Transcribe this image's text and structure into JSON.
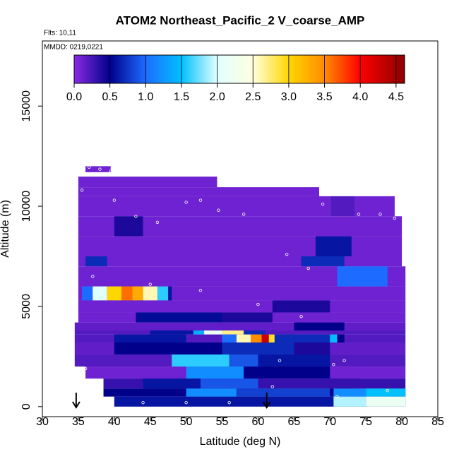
{
  "chart_data": {
    "type": "heatmap",
    "title": "ATOM2 Northeast_Pacific_2 V_coarse_AMP",
    "subtitle": "Flts: 10,11",
    "annotation": "MMDD: 0219,0221",
    "x_label": "Latitude (deg N)",
    "y_label": "Altitude (m)",
    "xlim": [
      30,
      85
    ],
    "ylim": [
      -500,
      18250
    ],
    "xticks": [
      30,
      35,
      40,
      45,
      50,
      55,
      60,
      65,
      70,
      75,
      80,
      85
    ],
    "yticks": [
      0,
      5000,
      10000,
      15000
    ],
    "colorbar": {
      "lim": [
        0,
        4.62
      ],
      "ticks": [
        {
          "value": 0,
          "label": "0.0"
        },
        0.5,
        {
          "value": 1,
          "label": "1.0"
        },
        1.5,
        {
          "value": 2,
          "label": "2.0"
        },
        2.5,
        {
          "value": 3,
          "label": "3.0"
        },
        3.5,
        {
          "value": 4,
          "label": "4.0"
        },
        4.5
      ],
      "stops": [
        [
          0,
          "#8a2be2"
        ],
        [
          0.5,
          "#00008b"
        ],
        [
          1.0,
          "#1e6cff"
        ],
        [
          1.5,
          "#00bfff"
        ],
        [
          2.0,
          "#e0ffff"
        ],
        [
          2.5,
          "#ffffe0"
        ],
        [
          3.0,
          "#ffd700"
        ],
        [
          3.5,
          "#ff8c00"
        ],
        [
          4.0,
          "#ff0000"
        ],
        [
          4.62,
          "#8b0000"
        ]
      ]
    },
    "bands": [
      {
        "alt": [
          11700,
          12000
        ],
        "cells": [
          [
            36,
            39.5,
            0.1
          ]
        ]
      },
      {
        "alt": [
          10950,
          11480
        ],
        "cells": [
          [
            35,
            54.3,
            0.1
          ]
        ]
      },
      {
        "alt": [
          10500,
          10950
        ],
        "cells": [
          [
            35,
            68.5,
            0.1
          ]
        ]
      },
      {
        "alt": [
          9500,
          10500
        ],
        "cells": [
          [
            35,
            70,
            0.1
          ],
          [
            70,
            73.5,
            0.2
          ],
          [
            73.5,
            79,
            0.1
          ]
        ]
      },
      {
        "alt": [
          8500,
          9500
        ],
        "cells": [
          [
            35,
            80,
            0.1
          ],
          [
            40,
            44,
            0.4
          ]
        ]
      },
      {
        "alt": [
          7500,
          8500
        ],
        "cells": [
          [
            35,
            80,
            0.1
          ],
          [
            68,
            73,
            0.6
          ]
        ]
      },
      {
        "alt": [
          7000,
          7500
        ],
        "cells": [
          [
            35,
            80,
            0.1
          ],
          [
            36,
            39,
            0.7
          ],
          [
            66,
            72,
            0.7
          ]
        ]
      },
      {
        "alt": [
          6000,
          7000
        ],
        "cells": [
          [
            35,
            80.5,
            0.1
          ],
          [
            71,
            78,
            1.0
          ]
        ]
      },
      {
        "alt": [
          5300,
          6000
        ],
        "cells": [
          [
            35,
            80.5,
            0.1
          ],
          [
            35.5,
            37,
            1.0
          ],
          [
            37,
            39,
            2.0
          ],
          [
            39,
            41,
            3.0
          ],
          [
            41,
            42.5,
            3.6
          ],
          [
            42.5,
            44,
            3.3
          ],
          [
            44,
            46,
            2.6
          ],
          [
            46,
            47.5,
            1.6
          ],
          [
            47.5,
            48,
            0.6
          ]
        ]
      },
      {
        "alt": [
          4700,
          5300
        ],
        "cells": [
          [
            35,
            80.5,
            0.1
          ],
          [
            62,
            70,
            0.4
          ]
        ]
      },
      {
        "alt": [
          4200,
          4700
        ],
        "cells": [
          [
            35,
            80.5,
            0.1
          ],
          [
            43,
            55,
            0.55
          ],
          [
            55,
            62,
            0.4
          ]
        ]
      },
      {
        "alt": [
          3800,
          4200
        ],
        "cells": [
          [
            34.5,
            80.5,
            0.15
          ],
          [
            65,
            72,
            0.5
          ]
        ]
      },
      {
        "alt": [
          3600,
          3800
        ],
        "cells": [
          [
            34.5,
            80.5,
            0.2
          ],
          [
            45,
            51,
            0.6
          ],
          [
            51,
            52.5,
            1.4
          ],
          [
            52.5,
            55,
            2.2
          ],
          [
            55,
            58,
            2.7
          ],
          [
            58,
            61,
            0.7
          ]
        ]
      },
      {
        "alt": [
          3200,
          3600
        ],
        "cells": [
          [
            34.5,
            80.5,
            0.2
          ],
          [
            40,
            50,
            0.6
          ],
          [
            55,
            57,
            1.0
          ],
          [
            57,
            59,
            2.6
          ],
          [
            59,
            60.5,
            3.5
          ],
          [
            60.5,
            61.5,
            4.3
          ],
          [
            61.5,
            62.3,
            2.9
          ],
          [
            62.3,
            70,
            0.7
          ],
          [
            70,
            71,
            1.5
          ],
          [
            71,
            72,
            0.5
          ]
        ]
      },
      {
        "alt": [
          2600,
          3200
        ],
        "cells": [
          [
            34.5,
            80.5,
            0.15
          ],
          [
            40,
            55,
            0.5
          ],
          [
            55,
            65,
            0.7
          ],
          [
            65,
            70,
            0.4
          ]
        ]
      },
      {
        "alt": [
          2000,
          2600
        ],
        "cells": [
          [
            34.5,
            80.5,
            0.2
          ],
          [
            48,
            56,
            1.6
          ],
          [
            56,
            60,
            0.9
          ],
          [
            60,
            70,
            0.6
          ]
        ]
      },
      {
        "alt": [
          1400,
          2000
        ],
        "cells": [
          [
            36,
            80.5,
            0.1
          ],
          [
            50,
            58,
            1.2
          ],
          [
            58,
            70,
            0.5
          ]
        ]
      },
      {
        "alt": [
          900,
          1400
        ],
        "cells": [
          [
            38.5,
            80.5,
            0.3
          ],
          [
            44,
            52,
            0.6
          ],
          [
            52,
            60,
            0.9
          ],
          [
            70,
            74,
            0.3
          ]
        ]
      },
      {
        "alt": [
          500,
          900
        ],
        "cells": [
          [
            38.5,
            80.5,
            0.5
          ],
          [
            50,
            57,
            1.2
          ],
          [
            57,
            70,
            0.8
          ],
          [
            70.5,
            75,
            1.2
          ],
          [
            75,
            80.5,
            1.5
          ]
        ]
      },
      {
        "alt": [
          0,
          500
        ],
        "cells": [
          [
            40,
            80.5,
            0.6
          ],
          [
            70.5,
            75,
            1.9
          ],
          [
            75,
            80.5,
            2.2
          ]
        ]
      }
    ],
    "points": [
      [
        36.5,
        11950
      ],
      [
        38,
        11850
      ],
      [
        39.5,
        11750
      ],
      [
        35.5,
        10800
      ],
      [
        40,
        10300
      ],
      [
        43,
        9500
      ],
      [
        46,
        9200
      ],
      [
        50,
        10200
      ],
      [
        52,
        10300
      ],
      [
        54.5,
        9800
      ],
      [
        58,
        9600
      ],
      [
        64,
        7600
      ],
      [
        67,
        6900
      ],
      [
        69,
        10100
      ],
      [
        74,
        9600
      ],
      [
        77,
        9600
      ],
      [
        79,
        9400
      ],
      [
        37,
        6500
      ],
      [
        45,
        6100
      ],
      [
        52,
        5800
      ],
      [
        60,
        5100
      ],
      [
        66,
        4500
      ],
      [
        70.5,
        2100
      ],
      [
        72,
        2300
      ],
      [
        36,
        1900
      ],
      [
        44,
        200
      ],
      [
        50,
        200
      ],
      [
        56,
        200
      ],
      [
        62,
        1000
      ],
      [
        71,
        500
      ],
      [
        78,
        800
      ],
      [
        63,
        2300
      ]
    ],
    "arrows_lat": [
      34.7,
      61.2
    ]
  }
}
